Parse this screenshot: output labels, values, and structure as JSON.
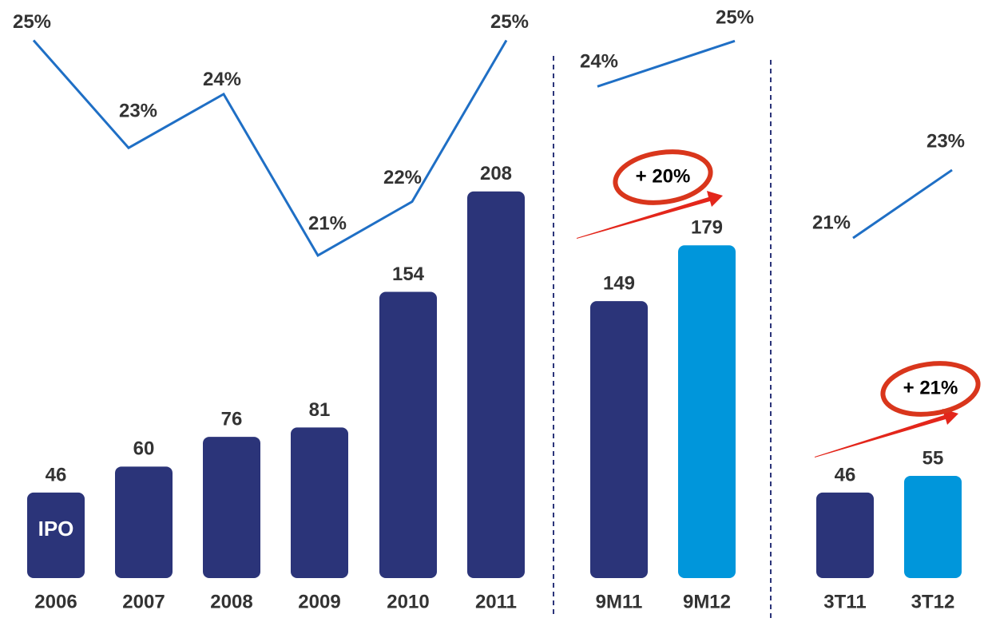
{
  "chart_data": [
    {
      "type": "bar",
      "categories": [
        "2006",
        "2007",
        "2008",
        "2009",
        "2010",
        "2011"
      ],
      "values": [
        46,
        60,
        76,
        81,
        154,
        208
      ],
      "color": "#2b3479",
      "ylim": [
        0,
        311
      ],
      "annotations": [
        {
          "text": "IPO"
        }
      ],
      "line": {
        "values": [
          25,
          23,
          24,
          21,
          22,
          25
        ],
        "value_labels": [
          "25%",
          "23%",
          "24%",
          "21%",
          "22%",
          "25%"
        ],
        "color": "#1f6fc5",
        "axis": "y2"
      },
      "y2lim": [
        15,
        25.75
      ]
    },
    {
      "type": "bar",
      "categories": [
        "9M11",
        "9M12"
      ],
      "values": [
        149,
        179
      ],
      "colors": [
        "#2b3479",
        "#0096db"
      ],
      "ylim": [
        0,
        311
      ],
      "annotations": [
        {
          "text": "+ 20%"
        }
      ],
      "line": {
        "values": [
          24,
          25
        ],
        "value_labels": [
          "24%",
          "25%"
        ],
        "color": "#1f6fc5",
        "axis": "y2"
      },
      "y2lim": [
        13.2,
        25.9
      ]
    },
    {
      "type": "bar",
      "categories": [
        "3T11",
        "3T12"
      ],
      "values": [
        46,
        55
      ],
      "colors": [
        "#2b3479",
        "#0096db"
      ],
      "ylim": [
        0,
        311
      ],
      "annotations": [
        {
          "text": "+ 21%"
        }
      ],
      "line": {
        "values": [
          21,
          23
        ],
        "value_labels": [
          "21%",
          "23%"
        ],
        "color": "#1f6fc5",
        "axis": "y2"
      },
      "y2lim": [
        11,
        28
      ]
    }
  ]
}
